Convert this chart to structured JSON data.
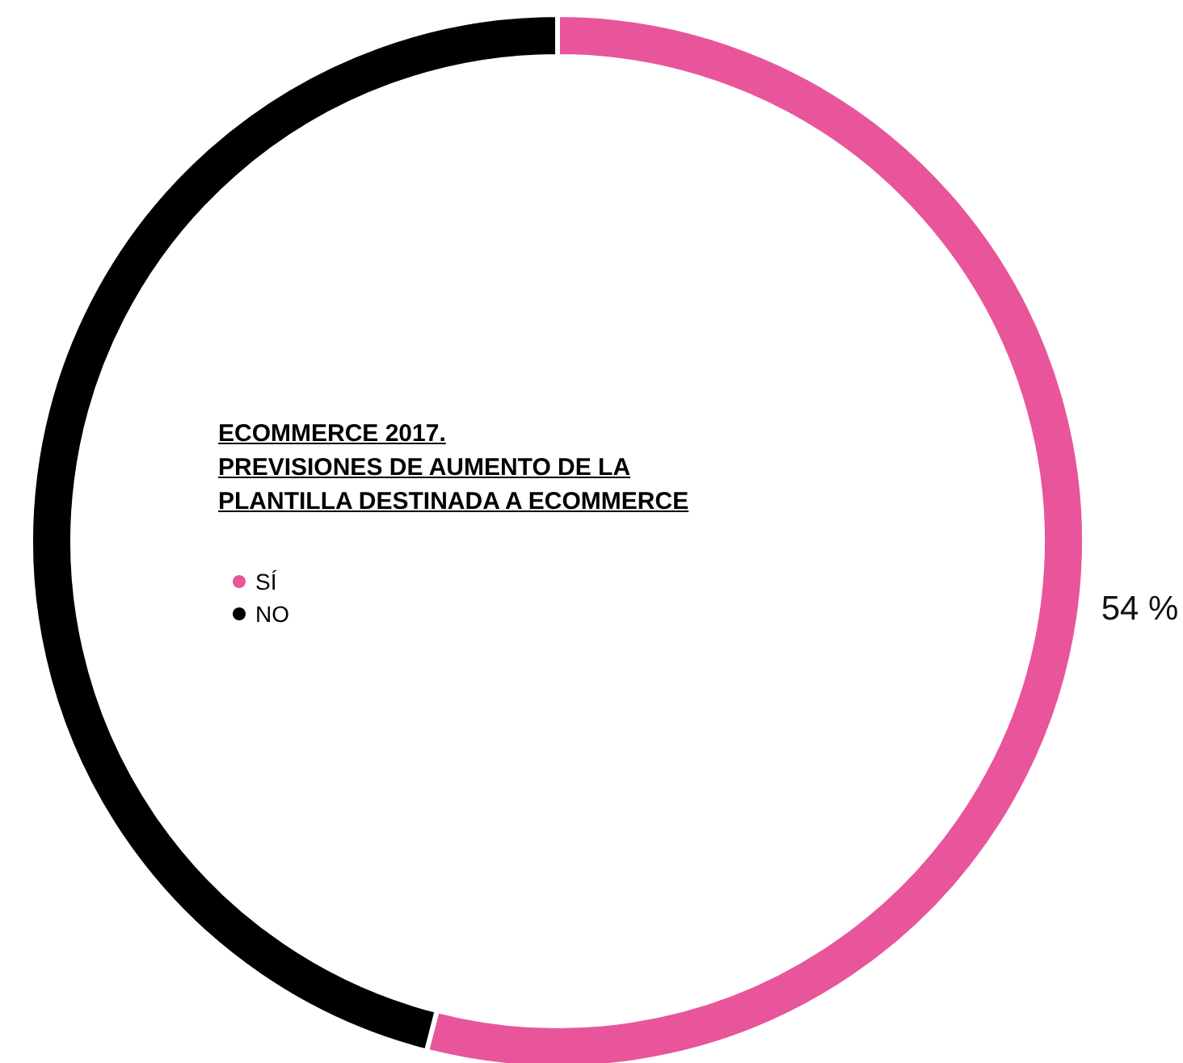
{
  "chart_data": {
    "type": "donut",
    "title": "ECOMMERCE 2017.\nPREVISIONES DE AUMENTO DE LA\nPLANTILLA DESTINADA A ECOMMERCE",
    "categories": [
      "SÍ",
      "NO"
    ],
    "values": [
      54,
      46
    ],
    "colors": [
      "#e8559a",
      "#000000"
    ],
    "value_labels": [
      "54 %",
      null
    ],
    "legend": "left"
  }
}
